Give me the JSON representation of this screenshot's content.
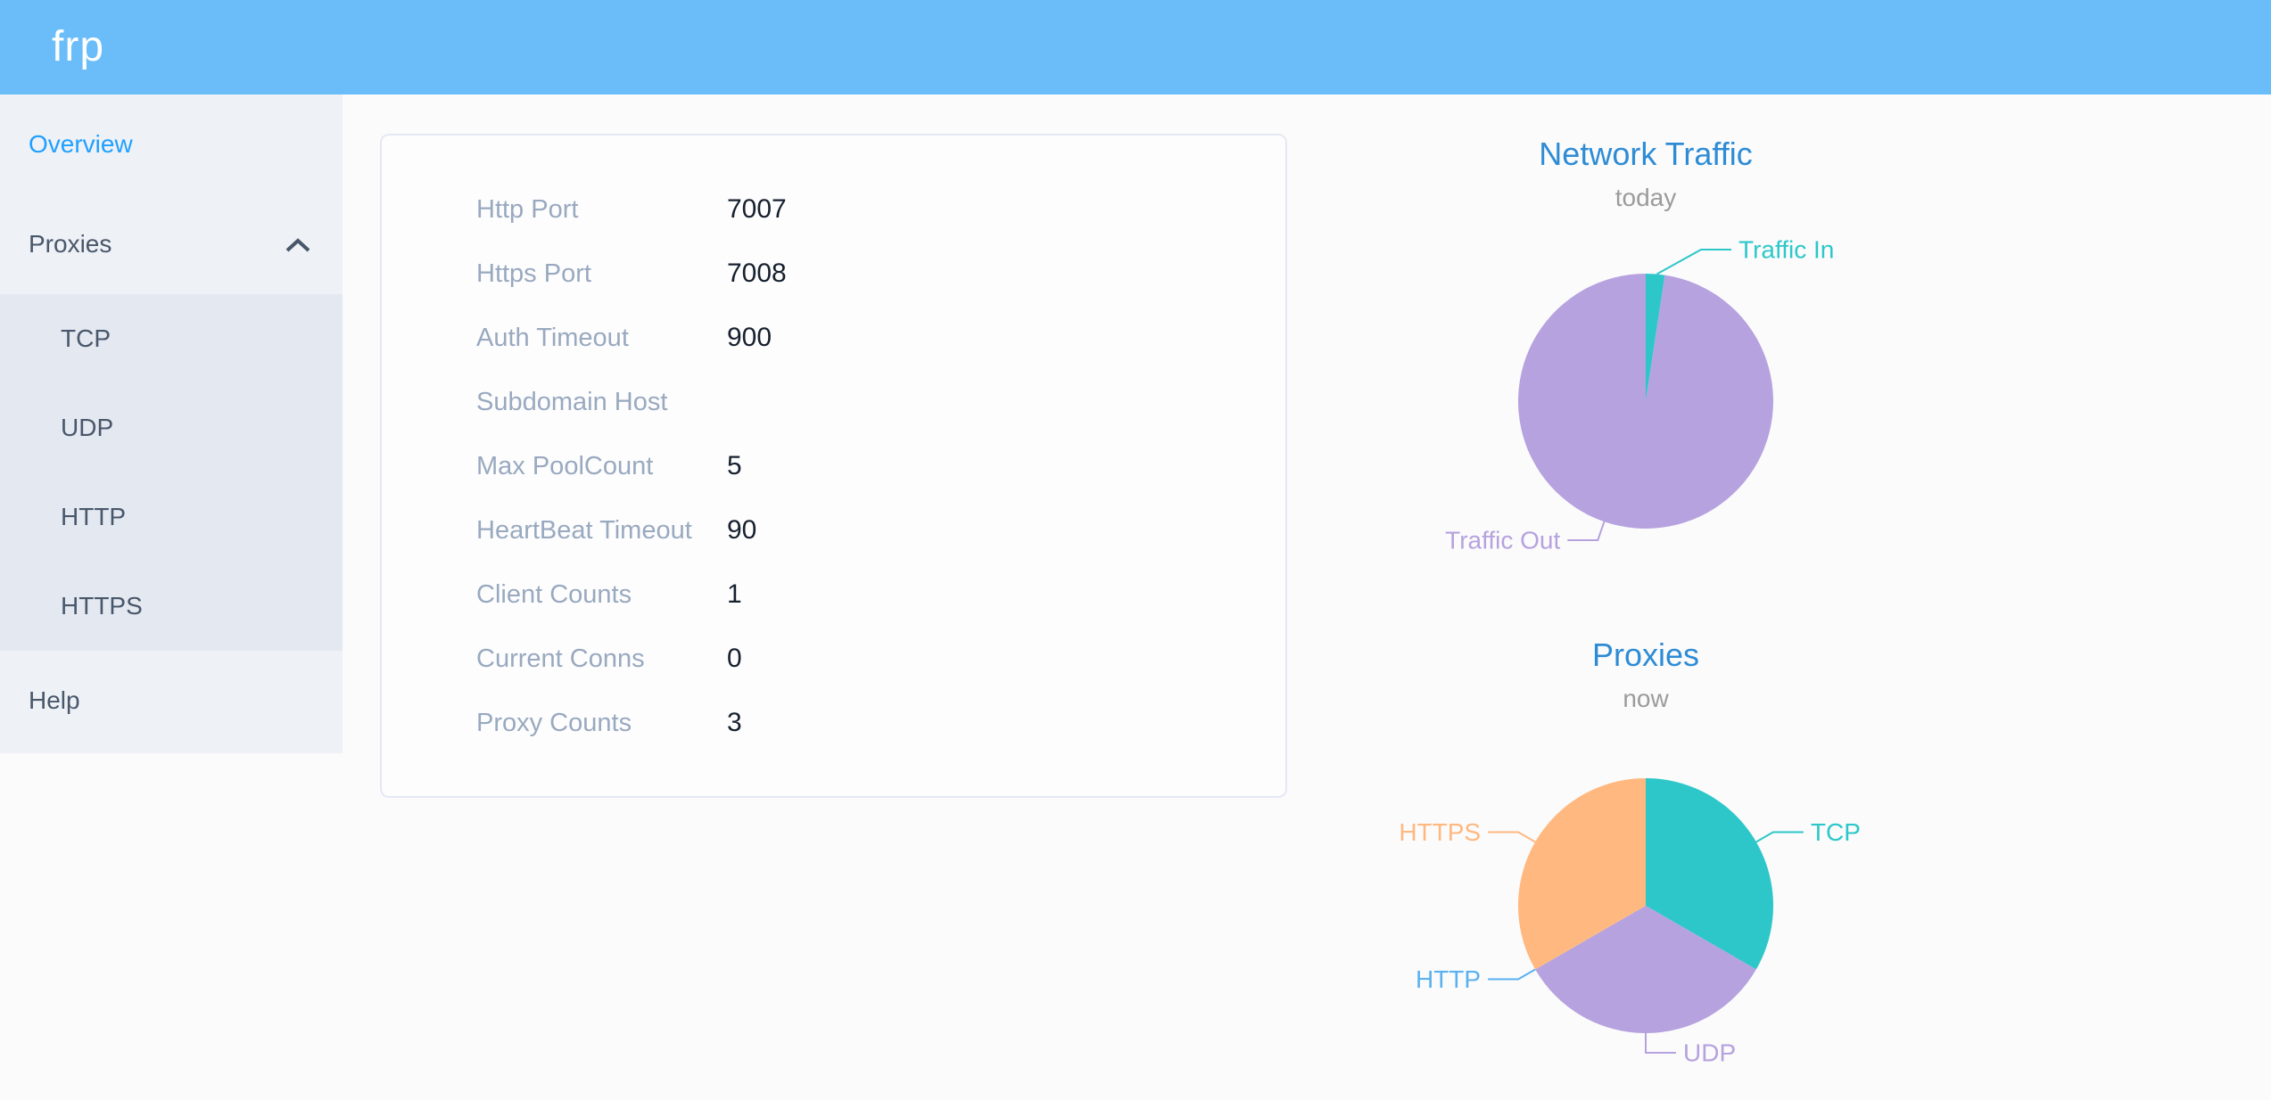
{
  "app": {
    "logo_text": "frp"
  },
  "sidebar": {
    "items": [
      {
        "label": "Overview",
        "active": true
      },
      {
        "label": "Proxies",
        "expanded": true
      },
      {
        "label": "Help"
      }
    ],
    "proxies_children": [
      "TCP",
      "UDP",
      "HTTP",
      "HTTPS"
    ]
  },
  "server_info": {
    "rows": [
      {
        "label": "Http Port",
        "value": "7007"
      },
      {
        "label": "Https Port",
        "value": "7008"
      },
      {
        "label": "Auth Timeout",
        "value": "900"
      },
      {
        "label": "Subdomain Host",
        "value": ""
      },
      {
        "label": "Max PoolCount",
        "value": "5"
      },
      {
        "label": "HeartBeat Timeout",
        "value": "90"
      },
      {
        "label": "Client Counts",
        "value": "1"
      },
      {
        "label": "Current Conns",
        "value": "0"
      },
      {
        "label": "Proxy Counts",
        "value": "3"
      }
    ]
  },
  "chart_data": [
    {
      "type": "pie",
      "title": "Network Traffic",
      "subtitle": "today",
      "start_angle_deg": 0,
      "clockwise": true,
      "legend_position": "callout-labels",
      "values_note": "share of pie estimated from slice angles; byte values not shown on screen",
      "slices": [
        {
          "label": "Traffic In",
          "value": 2.4,
          "color": "#2ec7c9"
        },
        {
          "label": "Traffic Out",
          "value": 97.6,
          "color": "#b6a2de"
        }
      ]
    },
    {
      "type": "pie",
      "title": "Proxies",
      "subtitle": "now",
      "start_angle_deg": 0,
      "clockwise": true,
      "legend_position": "callout-labels",
      "values_note": "proxy counts by type",
      "slices": [
        {
          "label": "TCP",
          "value": 1,
          "color": "#2ec7c9"
        },
        {
          "label": "UDP",
          "value": 1,
          "color": "#b6a2de"
        },
        {
          "label": "HTTP",
          "value": 0,
          "color": "#5ab1ef"
        },
        {
          "label": "HTTPS",
          "value": 1,
          "color": "#ffb980"
        }
      ]
    }
  ],
  "theme": {
    "header_bg": "#6abdf8",
    "sidebar_bg": "#eef1f6",
    "submenu_bg": "#e4e8f1",
    "menu_text": "#48576a",
    "menu_active": "#20a0ff",
    "chart_title_blue": "#2e8cd5",
    "chart_subtitle_gray": "#9b9b9b",
    "info_label_gray": "#99a9bf",
    "info_value_dark": "#17202e"
  }
}
